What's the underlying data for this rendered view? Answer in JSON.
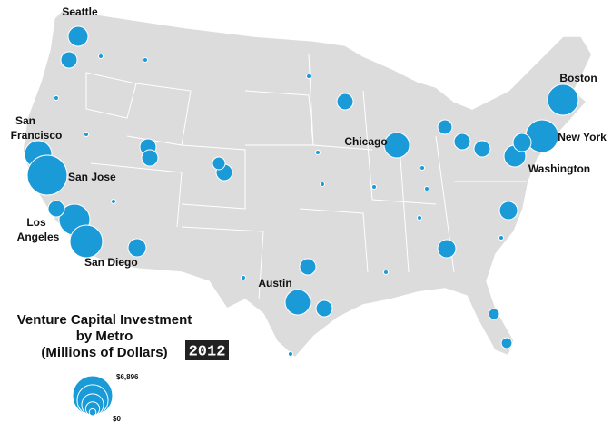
{
  "title": [
    "Venture Capital Investment",
    "by Metro",
    "(Millions of Dollars)"
  ],
  "year": "2012",
  "legend": {
    "max": 6896,
    "min": 0,
    "max_label": "$6,896",
    "min_label": "$0"
  },
  "cities": [
    [
      "Seattle"
    ],
    [
      "San",
      "Francisco"
    ],
    [
      "San Jose"
    ],
    [
      "Los",
      "Angeles"
    ],
    [
      "San Diego"
    ],
    [
      "Austin"
    ],
    [
      "Chicago"
    ],
    [
      "Boston"
    ],
    [
      "New York"
    ],
    [
      "Washington"
    ]
  ],
  "bubble_values": [
    1724,
    1154,
    3206,
    6896,
    4118,
    1154,
    4616,
    1425,
    1154,
    1154,
    1154,
    700,
    1154,
    2793,
    2793,
    1154,
    1154,
    1425,
    1425,
    2053,
    4616,
    4118,
    1425,
    1154,
    1154,
    900,
    500,
    500,
    60,
    60,
    60,
    60,
    60,
    60,
    60,
    60,
    60,
    60,
    60,
    60,
    60,
    60,
    60,
    60
  ]
}
